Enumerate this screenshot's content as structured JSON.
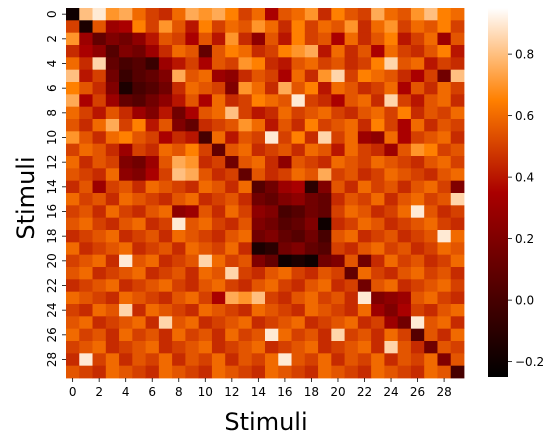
{
  "chart_data": {
    "type": "heatmap",
    "title": "",
    "xlabel": "Stimuli",
    "ylabel": "Stimuli",
    "n_rows": 30,
    "n_cols": 30,
    "x_tick_labels": [
      "0",
      "2",
      "4",
      "6",
      "8",
      "10",
      "12",
      "14",
      "16",
      "18",
      "20",
      "22",
      "24",
      "26",
      "28"
    ],
    "y_tick_labels": [
      "0",
      "2",
      "4",
      "6",
      "8",
      "10",
      "12",
      "14",
      "16",
      "18",
      "20",
      "22",
      "24",
      "26",
      "28"
    ],
    "colorbar": {
      "vmin": -0.25,
      "vmax": 0.95,
      "ticks": [
        -0.2,
        0.0,
        0.2,
        0.4,
        0.6,
        0.8
      ],
      "tick_labels": [
        "−0.2",
        "0.0",
        "0.2",
        "0.4",
        "0.6",
        "0.8"
      ],
      "colormap": "gist_heat"
    },
    "grid": false,
    "values": [
      [
        -0.2,
        0.8,
        0.9,
        0.7,
        0.75,
        0.6,
        0.5,
        0.45,
        0.6,
        0.75,
        0.7,
        0.75,
        0.65,
        0.5,
        0.6,
        0.35,
        0.55,
        0.6,
        0.7,
        0.45,
        0.65,
        0.55,
        0.5,
        0.75,
        0.6,
        0.55,
        0.7,
        0.8,
        0.65,
        0.6
      ],
      [
        0.5,
        -0.15,
        0.55,
        0.3,
        0.35,
        0.65,
        0.5,
        0.7,
        0.55,
        0.4,
        0.65,
        0.5,
        0.6,
        0.55,
        0.7,
        0.6,
        0.45,
        0.65,
        0.5,
        0.6,
        0.55,
        0.7,
        0.45,
        0.6,
        0.7,
        0.5,
        0.6,
        0.55,
        0.65,
        0.5
      ],
      [
        0.7,
        0.3,
        0.1,
        0.2,
        0.15,
        0.25,
        0.4,
        0.55,
        0.5,
        0.35,
        0.55,
        0.4,
        0.7,
        0.45,
        0.25,
        0.55,
        0.4,
        0.65,
        0.5,
        0.55,
        0.35,
        0.6,
        0.45,
        0.55,
        0.65,
        0.4,
        0.5,
        0.6,
        0.3,
        0.55
      ],
      [
        0.45,
        0.35,
        0.25,
        0.05,
        0.2,
        0.15,
        0.3,
        0.45,
        0.6,
        0.55,
        0.1,
        0.55,
        0.65,
        0.6,
        0.45,
        0.5,
        0.65,
        0.7,
        0.75,
        0.4,
        0.6,
        0.45,
        0.55,
        0.35,
        0.6,
        0.5,
        0.45,
        0.55,
        0.65,
        0.4
      ],
      [
        0.6,
        0.45,
        0.85,
        0.1,
        0.0,
        0.05,
        -0.05,
        0.3,
        0.4,
        0.5,
        0.35,
        0.55,
        0.5,
        0.7,
        0.65,
        0.45,
        0.4,
        0.55,
        0.6,
        0.5,
        0.55,
        0.45,
        0.5,
        0.65,
        0.85,
        0.55,
        0.6,
        0.4,
        0.5,
        0.45
      ],
      [
        0.8,
        0.4,
        0.5,
        0.15,
        -0.05,
        0.05,
        0.1,
        0.2,
        0.75,
        0.55,
        0.6,
        0.3,
        0.25,
        0.45,
        0.55,
        0.5,
        0.35,
        0.6,
        0.45,
        0.7,
        0.85,
        0.5,
        0.65,
        0.6,
        0.55,
        0.45,
        0.35,
        0.5,
        0.15,
        0.8
      ],
      [
        0.65,
        0.55,
        0.45,
        0.2,
        -0.15,
        0.0,
        0.05,
        0.15,
        0.45,
        0.6,
        0.55,
        0.5,
        0.2,
        0.7,
        0.6,
        0.45,
        0.75,
        0.55,
        0.65,
        0.4,
        0.6,
        0.55,
        0.45,
        0.5,
        0.6,
        0.35,
        0.55,
        0.45,
        0.6,
        0.5
      ],
      [
        0.75,
        0.35,
        0.5,
        0.3,
        0.1,
        0.05,
        0.15,
        0.25,
        0.4,
        0.55,
        0.35,
        0.6,
        0.45,
        0.5,
        0.65,
        0.6,
        0.55,
        0.9,
        0.5,
        0.45,
        0.35,
        0.55,
        0.6,
        0.45,
        0.85,
        0.5,
        0.4,
        0.55,
        0.6,
        0.45
      ],
      [
        0.6,
        0.5,
        0.4,
        0.55,
        0.45,
        0.3,
        0.2,
        0.4,
        0.15,
        0.35,
        0.55,
        0.6,
        0.8,
        0.5,
        0.4,
        0.45,
        0.6,
        0.5,
        0.55,
        0.6,
        0.5,
        0.45,
        0.55,
        0.6,
        0.5,
        0.65,
        0.45,
        0.55,
        0.5,
        0.6
      ],
      [
        0.55,
        0.45,
        0.6,
        0.75,
        0.5,
        0.65,
        0.4,
        0.55,
        0.2,
        0.1,
        0.45,
        0.5,
        0.55,
        0.7,
        0.6,
        0.4,
        0.55,
        0.45,
        0.65,
        0.5,
        0.55,
        0.6,
        0.45,
        0.65,
        0.5,
        0.35,
        0.6,
        0.45,
        0.55,
        0.5
      ],
      [
        0.7,
        0.55,
        0.45,
        0.6,
        0.65,
        0.55,
        0.5,
        0.35,
        0.45,
        0.4,
        0.0,
        0.6,
        0.4,
        0.55,
        0.5,
        0.9,
        0.5,
        0.65,
        0.45,
        0.85,
        0.5,
        0.6,
        0.3,
        0.25,
        0.6,
        0.35,
        0.5,
        0.55,
        0.6,
        0.45
      ],
      [
        0.5,
        0.6,
        0.55,
        0.45,
        0.3,
        0.5,
        0.45,
        0.6,
        0.55,
        0.65,
        0.5,
        0.1,
        0.55,
        0.6,
        0.45,
        0.5,
        0.55,
        0.45,
        0.6,
        0.55,
        0.4,
        0.6,
        0.5,
        0.45,
        0.3,
        0.55,
        0.7,
        0.65,
        0.5,
        0.55
      ],
      [
        0.6,
        0.45,
        0.55,
        0.5,
        0.2,
        0.15,
        0.3,
        0.55,
        0.75,
        0.7,
        0.45,
        0.5,
        0.15,
        0.55,
        0.6,
        0.45,
        0.25,
        0.55,
        0.5,
        0.45,
        0.6,
        0.55,
        0.5,
        0.6,
        0.55,
        0.5,
        0.45,
        0.55,
        0.6,
        0.5
      ],
      [
        0.55,
        0.5,
        0.45,
        0.6,
        0.25,
        0.2,
        0.35,
        0.5,
        0.8,
        0.75,
        0.55,
        0.45,
        0.5,
        0.1,
        0.55,
        0.45,
        0.5,
        0.6,
        0.55,
        0.75,
        0.5,
        0.55,
        0.45,
        0.5,
        0.6,
        0.55,
        0.5,
        0.45,
        0.55,
        0.6
      ],
      [
        0.45,
        0.55,
        0.3,
        0.5,
        0.55,
        0.45,
        0.6,
        0.55,
        0.5,
        0.45,
        0.6,
        0.55,
        0.45,
        0.6,
        0.05,
        0.15,
        0.3,
        0.35,
        -0.1,
        0.2,
        0.55,
        0.45,
        0.6,
        0.5,
        0.55,
        0.45,
        0.55,
        0.6,
        0.5,
        0.2
      ],
      [
        0.6,
        0.5,
        0.55,
        0.45,
        0.6,
        0.55,
        0.5,
        0.45,
        0.55,
        0.6,
        0.45,
        0.5,
        0.55,
        0.45,
        0.15,
        0.1,
        0.2,
        0.25,
        0.15,
        0.1,
        0.45,
        0.55,
        0.5,
        0.6,
        0.45,
        0.55,
        0.6,
        0.5,
        0.55,
        0.85
      ],
      [
        0.5,
        0.55,
        0.45,
        0.6,
        0.5,
        0.45,
        0.55,
        0.6,
        0.25,
        0.3,
        0.55,
        0.45,
        0.6,
        0.5,
        0.25,
        0.2,
        0.0,
        0.05,
        0.15,
        0.1,
        0.5,
        0.6,
        0.55,
        0.45,
        0.5,
        0.6,
        0.9,
        0.55,
        0.45,
        0.5
      ],
      [
        0.55,
        0.6,
        0.5,
        0.45,
        0.55,
        0.6,
        0.45,
        0.5,
        0.9,
        0.55,
        0.6,
        0.5,
        0.45,
        0.55,
        0.2,
        0.15,
        0.05,
        0.1,
        0.2,
        -0.2,
        0.45,
        0.5,
        0.6,
        0.55,
        0.45,
        0.5,
        0.55,
        0.6,
        0.5,
        0.45
      ],
      [
        0.45,
        0.5,
        0.55,
        0.6,
        0.45,
        0.5,
        0.55,
        0.45,
        0.6,
        0.55,
        0.5,
        0.45,
        0.55,
        0.6,
        0.15,
        0.2,
        0.1,
        0.05,
        0.15,
        0.0,
        0.55,
        0.6,
        0.45,
        0.5,
        0.55,
        0.45,
        0.5,
        0.55,
        0.9,
        0.6
      ],
      [
        0.6,
        0.45,
        0.5,
        0.55,
        0.6,
        0.45,
        0.5,
        0.55,
        0.45,
        0.6,
        0.55,
        0.5,
        0.6,
        0.45,
        -0.15,
        -0.1,
        0.15,
        0.2,
        0.1,
        0.05,
        0.5,
        0.45,
        0.55,
        0.6,
        0.5,
        0.55,
        0.45,
        0.5,
        0.6,
        0.55
      ],
      [
        0.5,
        0.55,
        0.6,
        0.45,
        0.9,
        0.55,
        0.6,
        0.45,
        0.5,
        0.55,
        0.85,
        0.6,
        0.5,
        0.55,
        0.2,
        0.1,
        -0.2,
        -0.15,
        -0.2,
        0.15,
        0.2,
        0.55,
        0.15,
        0.45,
        0.6,
        0.5,
        0.55,
        0.45,
        0.5,
        0.6
      ],
      [
        0.55,
        0.6,
        0.45,
        0.5,
        0.55,
        0.6,
        0.45,
        0.5,
        0.55,
        0.45,
        0.6,
        0.55,
        0.85,
        0.5,
        0.45,
        0.55,
        0.6,
        0.5,
        0.45,
        0.55,
        0.5,
        0.1,
        0.6,
        0.5,
        0.45,
        0.55,
        0.6,
        0.5,
        0.55,
        0.45
      ],
      [
        0.45,
        0.5,
        0.55,
        0.6,
        0.45,
        0.5,
        0.55,
        0.6,
        0.5,
        0.45,
        0.55,
        0.6,
        0.5,
        0.45,
        0.55,
        0.6,
        0.5,
        0.45,
        0.55,
        0.6,
        0.45,
        0.5,
        0.15,
        0.55,
        0.6,
        0.45,
        0.5,
        0.55,
        0.6,
        0.5
      ],
      [
        0.6,
        0.55,
        0.5,
        0.45,
        0.6,
        0.55,
        0.5,
        0.45,
        0.55,
        0.6,
        0.5,
        0.35,
        0.75,
        0.7,
        0.8,
        0.5,
        0.45,
        0.55,
        0.6,
        0.5,
        0.55,
        0.45,
        0.9,
        0.2,
        0.25,
        0.3,
        0.55,
        0.6,
        0.5,
        0.45
      ],
      [
        0.5,
        0.45,
        0.6,
        0.55,
        0.85,
        0.45,
        0.6,
        0.55,
        0.5,
        0.45,
        0.6,
        0.55,
        0.5,
        0.45,
        0.6,
        0.55,
        0.5,
        0.45,
        0.6,
        0.55,
        0.5,
        0.45,
        0.6,
        0.3,
        0.2,
        0.35,
        0.5,
        0.45,
        0.55,
        0.6
      ],
      [
        0.55,
        0.6,
        0.45,
        0.5,
        0.55,
        0.6,
        0.45,
        0.85,
        0.55,
        0.6,
        0.45,
        0.5,
        0.55,
        0.6,
        0.45,
        0.5,
        0.55,
        0.6,
        0.45,
        0.5,
        0.55,
        0.6,
        0.45,
        0.5,
        0.3,
        0.15,
        0.9,
        0.55,
        0.6,
        0.45
      ],
      [
        0.6,
        0.5,
        0.55,
        0.45,
        0.6,
        0.5,
        0.55,
        0.45,
        0.6,
        0.5,
        0.55,
        0.45,
        0.6,
        0.5,
        0.55,
        0.9,
        0.6,
        0.5,
        0.55,
        0.45,
        0.85,
        0.5,
        0.55,
        0.45,
        0.6,
        0.5,
        0.05,
        0.55,
        0.45,
        0.6
      ],
      [
        0.5,
        0.55,
        0.6,
        0.45,
        0.5,
        0.55,
        0.6,
        0.45,
        0.5,
        0.55,
        0.6,
        0.45,
        0.5,
        0.55,
        0.6,
        0.45,
        0.5,
        0.55,
        0.6,
        0.45,
        0.5,
        0.55,
        0.6,
        0.45,
        0.85,
        0.55,
        0.45,
        0.15,
        0.55,
        0.5
      ],
      [
        0.45,
        0.9,
        0.5,
        0.6,
        0.45,
        0.55,
        0.5,
        0.6,
        0.45,
        0.55,
        0.5,
        0.6,
        0.45,
        0.55,
        0.5,
        0.6,
        0.9,
        0.55,
        0.5,
        0.6,
        0.45,
        0.55,
        0.5,
        0.6,
        0.45,
        0.55,
        0.5,
        0.6,
        0.2,
        0.55
      ],
      [
        0.55,
        0.5,
        0.45,
        0.6,
        0.55,
        0.5,
        0.45,
        0.6,
        0.55,
        0.5,
        0.45,
        0.6,
        0.55,
        0.5,
        0.45,
        0.6,
        0.55,
        0.5,
        0.45,
        0.6,
        0.55,
        0.5,
        0.45,
        0.6,
        0.55,
        0.5,
        0.45,
        0.6,
        0.55,
        0.0
      ]
    ]
  }
}
